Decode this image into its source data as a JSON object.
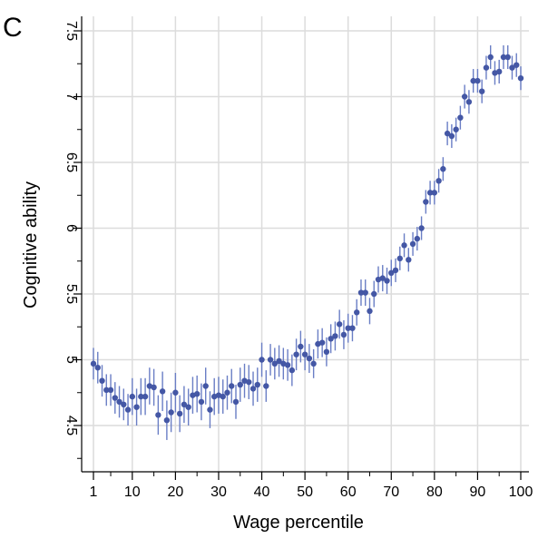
{
  "panel_label": "C",
  "chart_data": {
    "type": "scatter",
    "xlabel": "Wage percentile",
    "ylabel": "Cognitive ability",
    "xlim": [
      -4,
      100
    ],
    "ylim": [
      4.15,
      7.6
    ],
    "x_ticks": [
      1,
      10,
      20,
      30,
      40,
      50,
      60,
      70,
      80,
      90,
      100
    ],
    "y_ticks": [
      4.5,
      5,
      5.5,
      6,
      6.5,
      7,
      7.5
    ],
    "y_tick_labels": [
      "4.5",
      "5",
      "5.5",
      "6",
      "6.5",
      "7",
      "7.5"
    ],
    "grid": true,
    "error_bars": true,
    "marker_color": "#4457a5",
    "errorbar_color": "#6a7ec5",
    "x": [
      1,
      2,
      3,
      4,
      5,
      6,
      7,
      8,
      9,
      10,
      11,
      12,
      13,
      14,
      15,
      16,
      17,
      18,
      19,
      20,
      21,
      22,
      23,
      24,
      25,
      26,
      27,
      28,
      29,
      30,
      31,
      32,
      33,
      34,
      35,
      36,
      37,
      38,
      39,
      40,
      41,
      42,
      43,
      44,
      45,
      46,
      47,
      48,
      49,
      50,
      51,
      52,
      53,
      54,
      55,
      56,
      57,
      58,
      59,
      60,
      61,
      62,
      63,
      64,
      65,
      66,
      67,
      68,
      69,
      70,
      71,
      72,
      73,
      74,
      75,
      76,
      77,
      78,
      79,
      80,
      81,
      82,
      83,
      84,
      85,
      86,
      87,
      88,
      89,
      90,
      91,
      92,
      93,
      94,
      95,
      96,
      97,
      98,
      99,
      100
    ],
    "y": [
      4.97,
      4.94,
      4.84,
      4.77,
      4.77,
      4.71,
      4.68,
      4.66,
      4.62,
      4.72,
      4.64,
      4.72,
      4.72,
      4.8,
      4.79,
      4.58,
      4.76,
      4.54,
      4.6,
      4.75,
      4.59,
      4.66,
      4.64,
      4.73,
      4.74,
      4.68,
      4.8,
      4.62,
      4.72,
      4.73,
      4.72,
      4.75,
      4.8,
      4.68,
      4.81,
      4.84,
      4.83,
      4.78,
      4.81,
      5.0,
      4.8,
      5.0,
      4.97,
      4.99,
      4.97,
      4.96,
      4.92,
      5.04,
      5.1,
      5.04,
      5.01,
      4.97,
      5.12,
      5.13,
      5.06,
      5.16,
      5.18,
      5.27,
      5.19,
      5.24,
      5.24,
      5.36,
      5.51,
      5.51,
      5.37,
      5.5,
      5.61,
      5.62,
      5.6,
      5.66,
      5.68,
      5.77,
      5.87,
      5.76,
      5.88,
      5.92,
      6.0,
      6.2,
      6.27,
      6.27,
      6.36,
      6.45,
      6.72,
      6.7,
      6.75,
      6.84,
      7.0,
      6.96,
      7.12,
      7.12,
      7.04,
      7.22,
      7.3,
      7.18,
      7.19,
      7.3,
      7.3,
      7.22,
      7.24,
      7.14
    ],
    "err": [
      0.12,
      0.12,
      0.12,
      0.12,
      0.12,
      0.12,
      0.12,
      0.12,
      0.12,
      0.14,
      0.14,
      0.14,
      0.14,
      0.14,
      0.14,
      0.15,
      0.15,
      0.15,
      0.15,
      0.15,
      0.14,
      0.14,
      0.14,
      0.14,
      0.14,
      0.14,
      0.14,
      0.14,
      0.14,
      0.14,
      0.13,
      0.13,
      0.13,
      0.13,
      0.13,
      0.13,
      0.13,
      0.13,
      0.13,
      0.13,
      0.12,
      0.12,
      0.12,
      0.12,
      0.12,
      0.12,
      0.12,
      0.12,
      0.12,
      0.12,
      0.11,
      0.11,
      0.11,
      0.11,
      0.11,
      0.11,
      0.11,
      0.11,
      0.11,
      0.11,
      0.1,
      0.1,
      0.1,
      0.1,
      0.1,
      0.1,
      0.1,
      0.1,
      0.1,
      0.1,
      0.09,
      0.09,
      0.09,
      0.09,
      0.09,
      0.09,
      0.09,
      0.09,
      0.09,
      0.09,
      0.09,
      0.09,
      0.09,
      0.09,
      0.09,
      0.09,
      0.09,
      0.09,
      0.09,
      0.09,
      0.09,
      0.09,
      0.09,
      0.09,
      0.09,
      0.09,
      0.09,
      0.09,
      0.09,
      0.09
    ]
  }
}
